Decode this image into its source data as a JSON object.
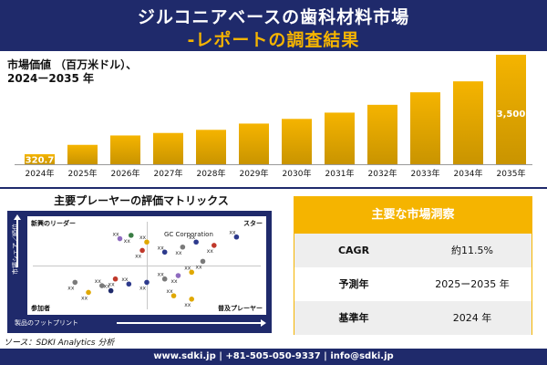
{
  "header": {
    "title_line1": "ジルコニアベースの歯科材料市場",
    "title_line2": "-レポートの調査結果"
  },
  "chart_label": {
    "line1": "市場価値 （百万米ドル）、",
    "line2": "2024ー2035 年"
  },
  "chart_data": {
    "type": "bar",
    "categories": [
      "2024年",
      "2025年",
      "2026年",
      "2027年",
      "2028年",
      "2029年",
      "2030年",
      "2031年",
      "2032年",
      "2033年",
      "2034年",
      "2035年"
    ],
    "values": [
      320.7,
      620,
      920,
      1000,
      1100,
      1300,
      1450,
      1650,
      1900,
      2300,
      2650,
      3500
    ],
    "data_labels": {
      "0": "320.7",
      "11": "3,500"
    },
    "bar_color": "#f5b400",
    "bar_color_dark": "#c99400",
    "grid": false
  },
  "matrix": {
    "title": "主要プレーヤーの評価マトリックス",
    "q_top_left": "新興のリーダー",
    "q_top_right": "スター",
    "q_bottom_left": "参加者",
    "q_bottom_right": "普及プレーヤー",
    "x_axis": "製品のフットプリント",
    "y_axis": "市場シェア／順位",
    "highlight_label": "GC Corporation",
    "point_label": "xx",
    "points": [
      {
        "x": 0.38,
        "y": 0.82,
        "color": "#8e6bbf"
      },
      {
        "x": 0.43,
        "y": 0.86,
        "color": "#3a7d44"
      },
      {
        "x": 0.5,
        "y": 0.78,
        "color": "#e0a800"
      },
      {
        "x": 0.48,
        "y": 0.68,
        "color": "#c0392b"
      },
      {
        "x": 0.58,
        "y": 0.66,
        "color": "#2d3a8c"
      },
      {
        "x": 0.66,
        "y": 0.72,
        "color": "#7a7a7a"
      },
      {
        "x": 0.72,
        "y": 0.78,
        "color": "#2d3a8c"
      },
      {
        "x": 0.8,
        "y": 0.74,
        "color": "#c0392b"
      },
      {
        "x": 0.9,
        "y": 0.84,
        "color": "#2d3a8c"
      },
      {
        "x": 0.75,
        "y": 0.55,
        "color": "#7a7a7a"
      },
      {
        "x": 0.7,
        "y": 0.42,
        "color": "#e0a800"
      },
      {
        "x": 0.64,
        "y": 0.38,
        "color": "#8e6bbf"
      },
      {
        "x": 0.58,
        "y": 0.34,
        "color": "#7a7a7a"
      },
      {
        "x": 0.5,
        "y": 0.3,
        "color": "#2d3a8c"
      },
      {
        "x": 0.42,
        "y": 0.28,
        "color": "#2d3a8c"
      },
      {
        "x": 0.36,
        "y": 0.34,
        "color": "#c0392b"
      },
      {
        "x": 0.3,
        "y": 0.26,
        "color": "#7a7a7a"
      },
      {
        "x": 0.24,
        "y": 0.18,
        "color": "#e0a800"
      },
      {
        "x": 0.34,
        "y": 0.2,
        "color": "#1f2a6b"
      },
      {
        "x": 0.18,
        "y": 0.3,
        "color": "#7a7a7a"
      },
      {
        "x": 0.62,
        "y": 0.14,
        "color": "#e0a800"
      },
      {
        "x": 0.7,
        "y": 0.1,
        "color": "#e0a800"
      }
    ]
  },
  "insights": {
    "title": "主要な市場洞察",
    "rows": [
      {
        "key": "CAGR",
        "value": "約11.5%"
      },
      {
        "key": "予測年",
        "value": "2025ー2035 年"
      },
      {
        "key": "基準年",
        "value": "2024 年"
      }
    ]
  },
  "source": "ソース：SDKI Analytics 分析",
  "footer": "www.sdki.jp | +81-505-050-9337 | info@sdki.jp",
  "colors": {
    "navy": "#1f2a6b",
    "gold": "#f5b400"
  }
}
